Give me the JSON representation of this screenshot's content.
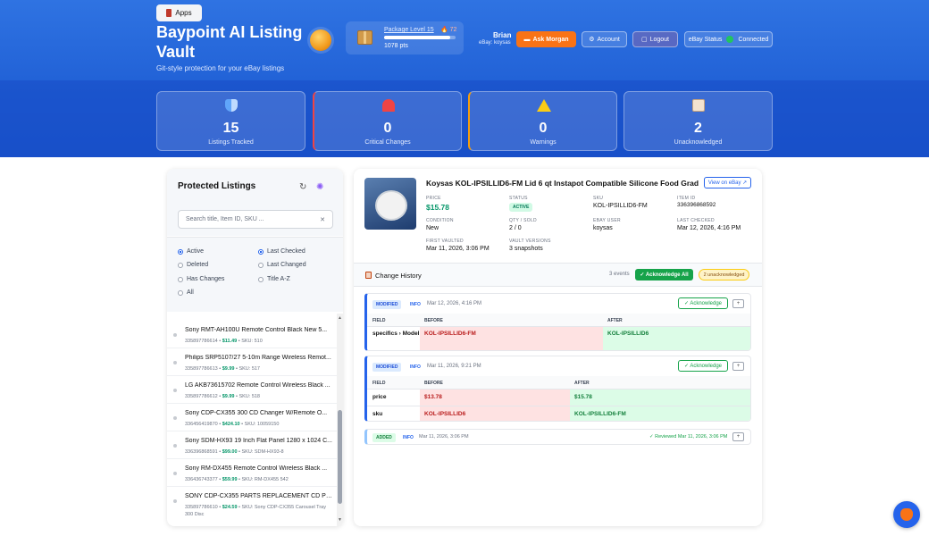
{
  "header": {
    "apps_label": "Apps",
    "title": "Baypoint AI Listing Vault",
    "tagline": "Git-style protection for your eBay listings",
    "package_level": "Package Level 15",
    "streak": "🔥 72",
    "points": "1078 pts",
    "level_progress": 0.92,
    "user_name": "Brian",
    "user_ebay": "eBay: koysas",
    "ask_morgan": "Ask Morgan",
    "account": "Account",
    "logout": "Logout",
    "ebay_status_label": "eBay Status",
    "ebay_status_value": "Connected"
  },
  "stats": [
    {
      "value": "15",
      "label": "Listings Tracked",
      "icon": "shield-icon"
    },
    {
      "value": "0",
      "label": "Critical Changes",
      "icon": "siren-icon"
    },
    {
      "value": "0",
      "label": "Warnings",
      "icon": "warning-icon"
    },
    {
      "value": "2",
      "label": "Unacknowledged",
      "icon": "clipboard-icon"
    }
  ],
  "listings_panel": {
    "title": "Protected Listings",
    "search_placeholder": "Search title, Item ID, SKU ...",
    "filters": {
      "status": [
        {
          "label": "Active",
          "checked": true
        },
        {
          "label": "Deleted",
          "checked": false
        },
        {
          "label": "Has Changes",
          "checked": false
        },
        {
          "label": "All",
          "checked": false
        }
      ],
      "sort": [
        {
          "label": "Last Checked",
          "checked": true
        },
        {
          "label": "Last Changed",
          "checked": false
        },
        {
          "label": "Title A-Z",
          "checked": false
        }
      ]
    },
    "items": [
      {
        "title": "Sony RMT-AH100U Remote Control Black New 5...",
        "id": "335897786614",
        "price": "$11.49",
        "sku": "SKU: 510"
      },
      {
        "title": "Philips SRP5107/27 5-10m Range Wireless Remot...",
        "id": "335897786613",
        "price": "$9.99",
        "sku": "SKU: 517"
      },
      {
        "title": "LG AKB73615702 Remote Control Wireless Black ...",
        "id": "335897786612",
        "price": "$9.99",
        "sku": "SKU: 518"
      },
      {
        "title": "Sony CDP-CX355 300 CD Changer W/Remote O...",
        "id": "336456419870",
        "price": "$424.10",
        "sku": "SKU: 10059150"
      },
      {
        "title": "Sony SDM-HX93 19 Inch Flat Panel 1280 x 1024 C...",
        "id": "336396868591",
        "price": "$99.00",
        "sku": "SKU: SDM-HX93-8"
      },
      {
        "title": "Sony RM-DX455 Remote Control Wireless Black ...",
        "id": "336436743377",
        "price": "$59.99",
        "sku": "SKU: RM-DX455 542"
      },
      {
        "title": "SONY CDP-CX355 PARTS REPLACEMENT CD PLA...",
        "id": "335897786610",
        "price": "$24.59",
        "sku": "SKU: Sony CDP-CX355 Carousel Tray 300 Disc"
      }
    ]
  },
  "detail": {
    "title": "Koysas KOL-IPSILLID6-FM Lid 6 qt Instapot Compatible Silicone Food Grade New",
    "view_on_ebay": "View on eBay ↗",
    "fields": {
      "price_label": "PRICE",
      "price": "$15.78",
      "status_label": "STATUS",
      "status": "ACTIVE",
      "sku_label": "SKU",
      "sku": "KOL-IPSILLID6-FM",
      "item_id_label": "ITEM ID",
      "item_id": "336396868592",
      "condition_label": "CONDITION",
      "condition": "New",
      "qty_label": "QTY / SOLD",
      "qty": "2 / 0",
      "ebay_user_label": "EBAY USER",
      "ebay_user": "koysas",
      "last_checked_label": "LAST CHECKED",
      "last_checked": "Mar 12, 2026, 4:16 PM",
      "first_vaulted_label": "FIRST VAULTED",
      "first_vaulted": "Mar 11, 2026, 3:06 PM",
      "vault_versions_label": "VAULT VERSIONS",
      "vault_versions": "3 snapshots"
    }
  },
  "history": {
    "title": "Change History",
    "count": "3 events",
    "ack_all": "✓ Acknowledge All",
    "unack": "2 unacknowledged",
    "col_field": "FIELD",
    "col_before": "BEFORE",
    "col_after": "AFTER",
    "ack_label": "✓ Acknowledge",
    "plus": "+",
    "events": [
      {
        "type": "MODIFIED",
        "level": "INFO",
        "time": "Mar 12, 2026, 4:16 PM",
        "rows": [
          {
            "field": "specifics › Model",
            "before": "KOL-IPSILLID6-FM",
            "after": "KOL-IPSILLID6"
          }
        ]
      },
      {
        "type": "MODIFIED",
        "level": "INFO",
        "time": "Mar 11, 2026, 9:21 PM",
        "rows": [
          {
            "field": "price",
            "before": "$13.78",
            "after": "$15.78"
          },
          {
            "field": "sku",
            "before": "KOL-IPSILLID6",
            "after": "KOL-IPSILLID6-FM"
          }
        ]
      },
      {
        "type": "ADDED",
        "level": "INFO",
        "time": "Mar 11, 2026, 3:06 PM",
        "reviewed": "✓ Reviewed Mar 11, 2026, 3:06 PM"
      }
    ]
  },
  "colors": {
    "primary": "#2563eb",
    "accent": "#f97316",
    "success": "#16a34a",
    "danger": "#b91c1c"
  }
}
